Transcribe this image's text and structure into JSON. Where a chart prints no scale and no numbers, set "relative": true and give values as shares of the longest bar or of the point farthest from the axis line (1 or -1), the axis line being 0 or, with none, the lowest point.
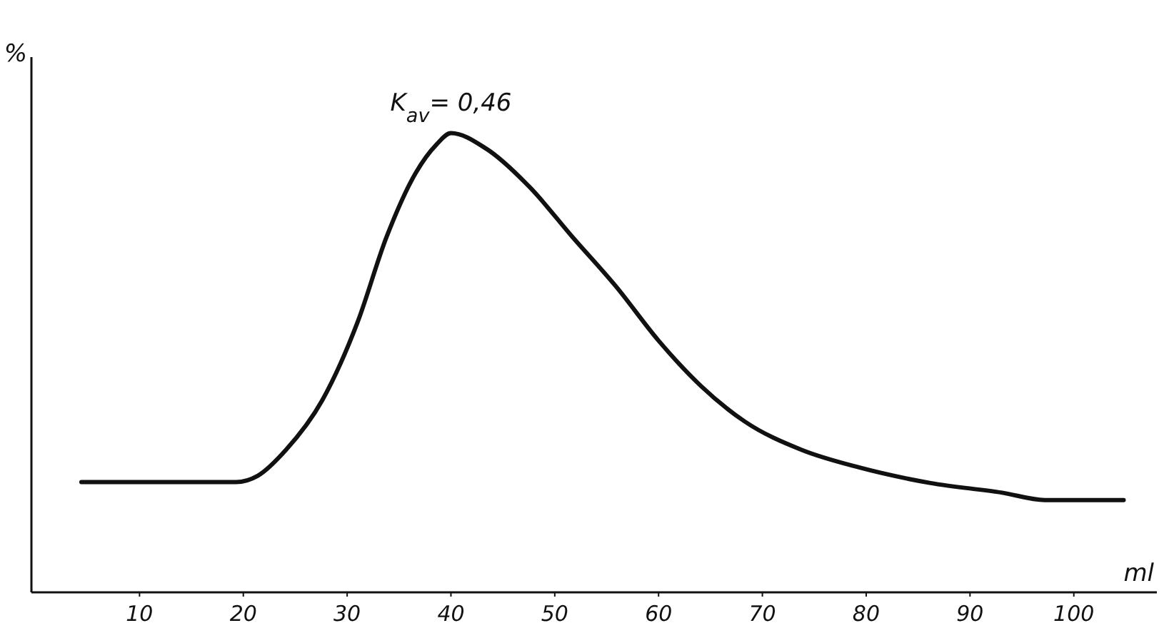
{
  "chart_data": {
    "type": "line",
    "relative": true,
    "xlabel": "ml",
    "ylabel": "%",
    "xlim": [
      0,
      108
    ],
    "xticks": [
      10,
      20,
      30,
      40,
      50,
      60,
      70,
      80,
      90,
      100
    ],
    "grid": false,
    "marker": "none",
    "line_style": "solid",
    "annotations": [
      {
        "text": "K$_{av}$= 0,46",
        "x": 40,
        "y": 1
      }
    ],
    "series": [
      {
        "color": "#111111",
        "x": [
          4.4,
          12,
          19.3,
          21.4,
          24.1,
          27.6,
          31,
          33.8,
          36.6,
          38.6,
          40,
          43.4,
          47.6,
          51.7,
          55.9,
          60,
          64.1,
          68.3,
          73.8,
          79.3,
          86.2,
          93.1,
          97.2,
          104.8
        ],
        "values": [
          0.24,
          0.24,
          0.24,
          0.254,
          0.31,
          0.418,
          0.588,
          0.774,
          0.913,
          0.975,
          1,
          0.966,
          0.882,
          0.774,
          0.666,
          0.548,
          0.449,
          0.372,
          0.31,
          0.272,
          0.238,
          0.217,
          0.201,
          0.201
        ]
      }
    ]
  }
}
